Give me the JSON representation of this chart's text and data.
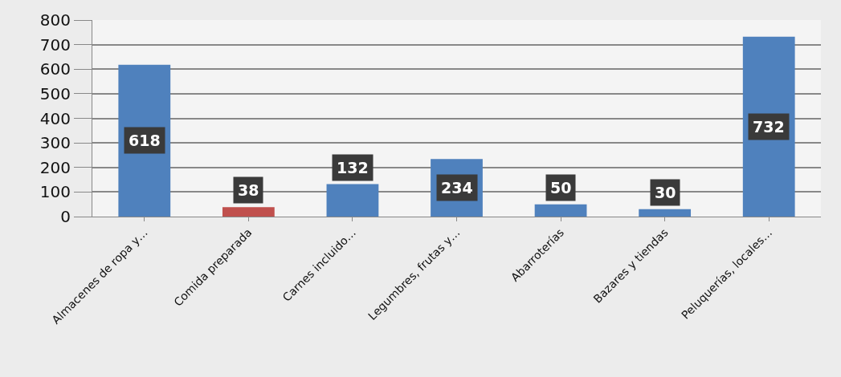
{
  "chart_data": {
    "type": "bar",
    "categories": [
      "Almacenes de ropa y…",
      "Comida preparada",
      "Carnes incluido…",
      "Legumbres, frutas y…",
      "Abarroterías",
      "Bazares y tiendas",
      "Peluquerías, locales…"
    ],
    "values": [
      618,
      38,
      132,
      234,
      50,
      30,
      732
    ],
    "colors": [
      "#4f81bd",
      "#c0504d",
      "#4f81bd",
      "#4f81bd",
      "#4f81bd",
      "#4f81bd",
      "#4f81bd"
    ],
    "ylim": [
      0,
      800
    ],
    "yticks": [
      0,
      100,
      200,
      300,
      400,
      500,
      600,
      700,
      800
    ],
    "grid": "y",
    "data_labels": true
  }
}
